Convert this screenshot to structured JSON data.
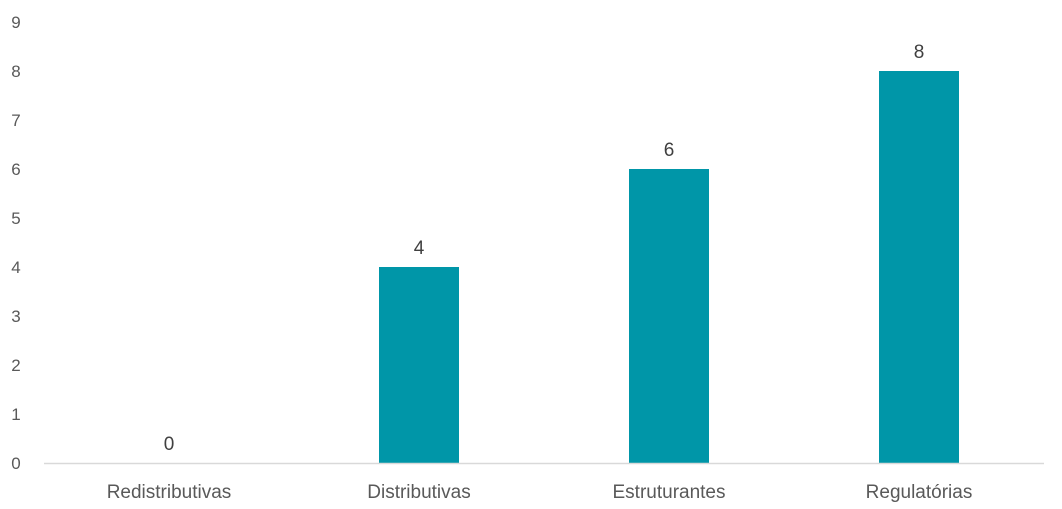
{
  "chart_data": {
    "type": "bar",
    "title": "",
    "xlabel": "",
    "ylabel": "",
    "categories": [
      "Redistributivas",
      "Distributivas",
      "Estruturantes",
      "Regulatórias"
    ],
    "values": [
      0,
      4,
      6,
      8
    ],
    "data_labels": [
      "0",
      "4",
      "6",
      "8"
    ],
    "yticks": [
      "0",
      "1",
      "2",
      "3",
      "4",
      "5",
      "6",
      "7",
      "8",
      "9"
    ],
    "ylim": [
      0,
      9
    ],
    "grid": false,
    "legend": "none",
    "colors": {
      "bar": "#0096A8",
      "axis": "#D9D9D9",
      "text": "#595959",
      "label": "#404040"
    }
  }
}
